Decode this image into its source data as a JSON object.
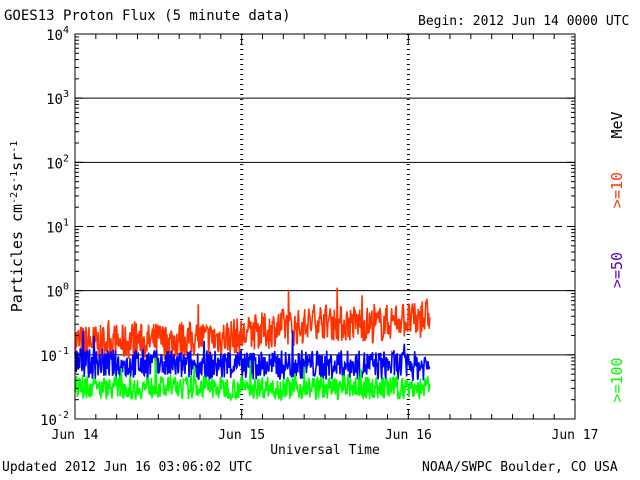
{
  "header": {
    "title": "GOES13 Proton Flux (5 minute data)",
    "begin": "Begin: 2012 Jun 14 0000 UTC"
  },
  "footer": {
    "updated": "Updated 2012 Jun 16 03:06:02 UTC",
    "credit": "NOAA/SWPC Boulder, CO USA"
  },
  "colors": {
    "mev10": "#ff3300",
    "mev50": "#0000ff",
    "mev100": "#00ff00",
    "axis": "#000000",
    "legend_unit": "#000000",
    "legend_50": "#5500cc"
  },
  "chart_data": {
    "type": "line",
    "xlabel": "Universal Time",
    "ylabel": "Particles cm-2s-1sr-1",
    "y_scale": "log",
    "ylim": [
      0.01,
      10000
    ],
    "y_ticks": [
      {
        "base": "10",
        "exp": "4",
        "value": 10000
      },
      {
        "base": "10",
        "exp": "3",
        "value": 1000
      },
      {
        "base": "10",
        "exp": "2",
        "value": 100
      },
      {
        "base": "10",
        "exp": "1",
        "value": 10
      },
      {
        "base": "10",
        "exp": "0",
        "value": 1
      },
      {
        "base": "10",
        "exp": "-1",
        "value": 0.1
      },
      {
        "base": "10",
        "exp": "-2",
        "value": 0.01
      }
    ],
    "gridlines": [
      {
        "value": 1000,
        "style": "solid"
      },
      {
        "value": 100,
        "style": "solid"
      },
      {
        "value": 10,
        "style": "dashed"
      },
      {
        "value": 1,
        "style": "solid"
      },
      {
        "value": 0.1,
        "style": "solid"
      }
    ],
    "x_ticks": [
      "Jun 14",
      "Jun 15",
      "Jun 16",
      "Jun 17"
    ],
    "xlim_days": [
      0,
      3
    ],
    "day_marker_days": [
      1,
      2
    ],
    "legend": {
      "unit": "MeV",
      "entries": [
        {
          "label": ">=10",
          "color": "#ff3300"
        },
        {
          "label": ">=50",
          "color": "#5500cc"
        },
        {
          "label": ">=100",
          "color": "#00ff00"
        }
      ]
    },
    "series": [
      {
        "name": ">=10 MeV",
        "color": "#ff3300",
        "x_days": [
          0.0,
          0.05,
          0.1,
          0.15,
          0.2,
          0.25,
          0.3,
          0.35,
          0.4,
          0.45,
          0.5,
          0.55,
          0.6,
          0.65,
          0.7,
          0.75,
          0.8,
          0.85,
          0.9,
          0.95,
          1.0,
          1.05,
          1.1,
          1.15,
          1.2,
          1.25,
          1.3,
          1.35,
          1.4,
          1.45,
          1.5,
          1.55,
          1.6,
          1.65,
          1.7,
          1.75,
          1.8,
          1.85,
          1.9,
          1.95,
          2.0,
          2.05,
          2.1,
          2.13
        ],
        "y": [
          0.17,
          0.15,
          0.16,
          0.15,
          0.17,
          0.16,
          0.15,
          0.18,
          0.16,
          0.16,
          0.17,
          0.16,
          0.17,
          0.18,
          0.17,
          0.19,
          0.17,
          0.18,
          0.19,
          0.2,
          0.19,
          0.22,
          0.24,
          0.23,
          0.26,
          0.28,
          0.26,
          0.27,
          0.3,
          0.35,
          0.34,
          0.31,
          0.3,
          0.31,
          0.32,
          0.3,
          0.29,
          0.31,
          0.33,
          0.37,
          0.34,
          0.33,
          0.38,
          0.45
        ]
      },
      {
        "name": ">=50 MeV",
        "color": "#0000ff",
        "x_days": [
          0.0,
          0.05,
          0.1,
          0.15,
          0.2,
          0.25,
          0.3,
          0.35,
          0.4,
          0.45,
          0.5,
          0.55,
          0.6,
          0.65,
          0.7,
          0.75,
          0.8,
          0.85,
          0.9,
          0.95,
          1.0,
          1.05,
          1.1,
          1.15,
          1.2,
          1.25,
          1.3,
          1.35,
          1.4,
          1.45,
          1.5,
          1.55,
          1.6,
          1.65,
          1.7,
          1.75,
          1.8,
          1.85,
          1.9,
          1.95,
          2.0,
          2.05,
          2.1,
          2.13
        ],
        "y": [
          0.08,
          0.075,
          0.07,
          0.075,
          0.072,
          0.07,
          0.068,
          0.073,
          0.07,
          0.072,
          0.07,
          0.069,
          0.07,
          0.068,
          0.071,
          0.07,
          0.069,
          0.07,
          0.068,
          0.07,
          0.069,
          0.068,
          0.07,
          0.069,
          0.068,
          0.07,
          0.069,
          0.071,
          0.072,
          0.07,
          0.069,
          0.068,
          0.07,
          0.069,
          0.068,
          0.07,
          0.069,
          0.068,
          0.07,
          0.069,
          0.068,
          0.067,
          0.068,
          0.07
        ]
      },
      {
        "name": ">=100 MeV",
        "color": "#00ff00",
        "x_days": [
          0.0,
          0.05,
          0.1,
          0.15,
          0.2,
          0.25,
          0.3,
          0.35,
          0.4,
          0.45,
          0.5,
          0.55,
          0.6,
          0.65,
          0.7,
          0.75,
          0.8,
          0.85,
          0.9,
          0.95,
          1.0,
          1.05,
          1.1,
          1.15,
          1.2,
          1.25,
          1.3,
          1.35,
          1.4,
          1.45,
          1.5,
          1.55,
          1.6,
          1.65,
          1.7,
          1.75,
          1.8,
          1.85,
          1.9,
          1.95,
          2.0,
          2.05,
          2.1,
          2.13
        ],
        "y": [
          0.032,
          0.031,
          0.032,
          0.03,
          0.031,
          0.032,
          0.031,
          0.03,
          0.031,
          0.032,
          0.031,
          0.03,
          0.031,
          0.03,
          0.031,
          0.032,
          0.031,
          0.03,
          0.031,
          0.03,
          0.031,
          0.03,
          0.031,
          0.032,
          0.031,
          0.03,
          0.031,
          0.03,
          0.031,
          0.03,
          0.031,
          0.03,
          0.031,
          0.032,
          0.031,
          0.03,
          0.031,
          0.03,
          0.031,
          0.03,
          0.031,
          0.03,
          0.031,
          0.03
        ]
      }
    ]
  }
}
